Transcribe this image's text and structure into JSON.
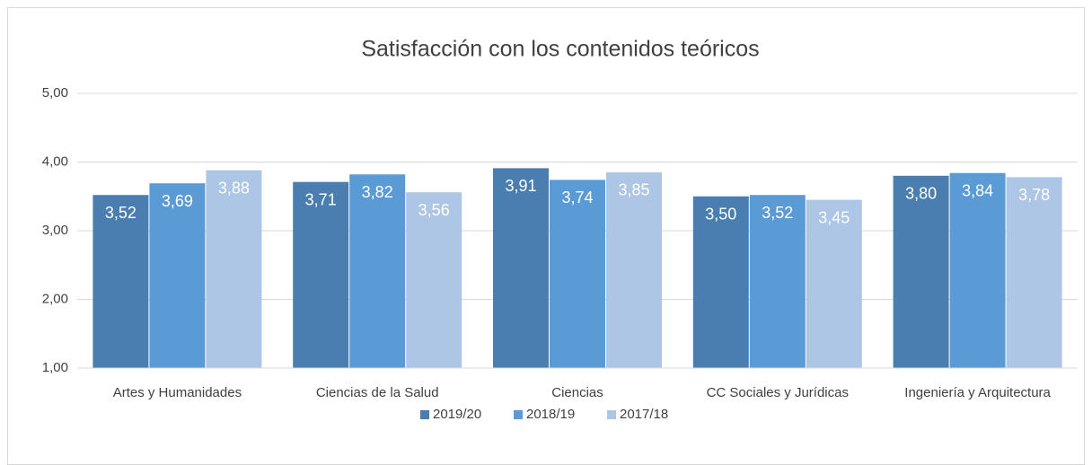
{
  "chart_data": {
    "type": "bar",
    "title": "Satisfacción con los contenidos teóricos",
    "categories": [
      "Artes y Humanidades",
      "Ciencias de la Salud",
      "Ciencias",
      "CC Sociales y Jurídicas",
      "Ingeniería y Arquitectura"
    ],
    "series": [
      {
        "name": "2019/20",
        "color": "#4a7eb0",
        "values": [
          3.52,
          3.71,
          3.91,
          3.5,
          3.8
        ],
        "value_labels": [
          "3,52",
          "3,71",
          "3,91",
          "3,50",
          "3,80"
        ]
      },
      {
        "name": "2018/19",
        "color": "#5b9bd5",
        "values": [
          3.69,
          3.82,
          3.74,
          3.52,
          3.84
        ],
        "value_labels": [
          "3,69",
          "3,82",
          "3,74",
          "3,52",
          "3,84"
        ]
      },
      {
        "name": "2017/18",
        "color": "#adc6e6",
        "values": [
          3.88,
          3.56,
          3.85,
          3.45,
          3.78
        ],
        "value_labels": [
          "3,88",
          "3,56",
          "3,85",
          "3,45",
          "3,78"
        ]
      }
    ],
    "ylim": [
      1,
      5
    ],
    "yticks": [
      {
        "value": 1,
        "label": "1,00"
      },
      {
        "value": 2,
        "label": "2,00"
      },
      {
        "value": 3,
        "label": "3,00"
      },
      {
        "value": 4,
        "label": "4,00"
      },
      {
        "value": 5,
        "label": "5,00"
      }
    ],
    "grid": true,
    "legend": "bottom"
  }
}
